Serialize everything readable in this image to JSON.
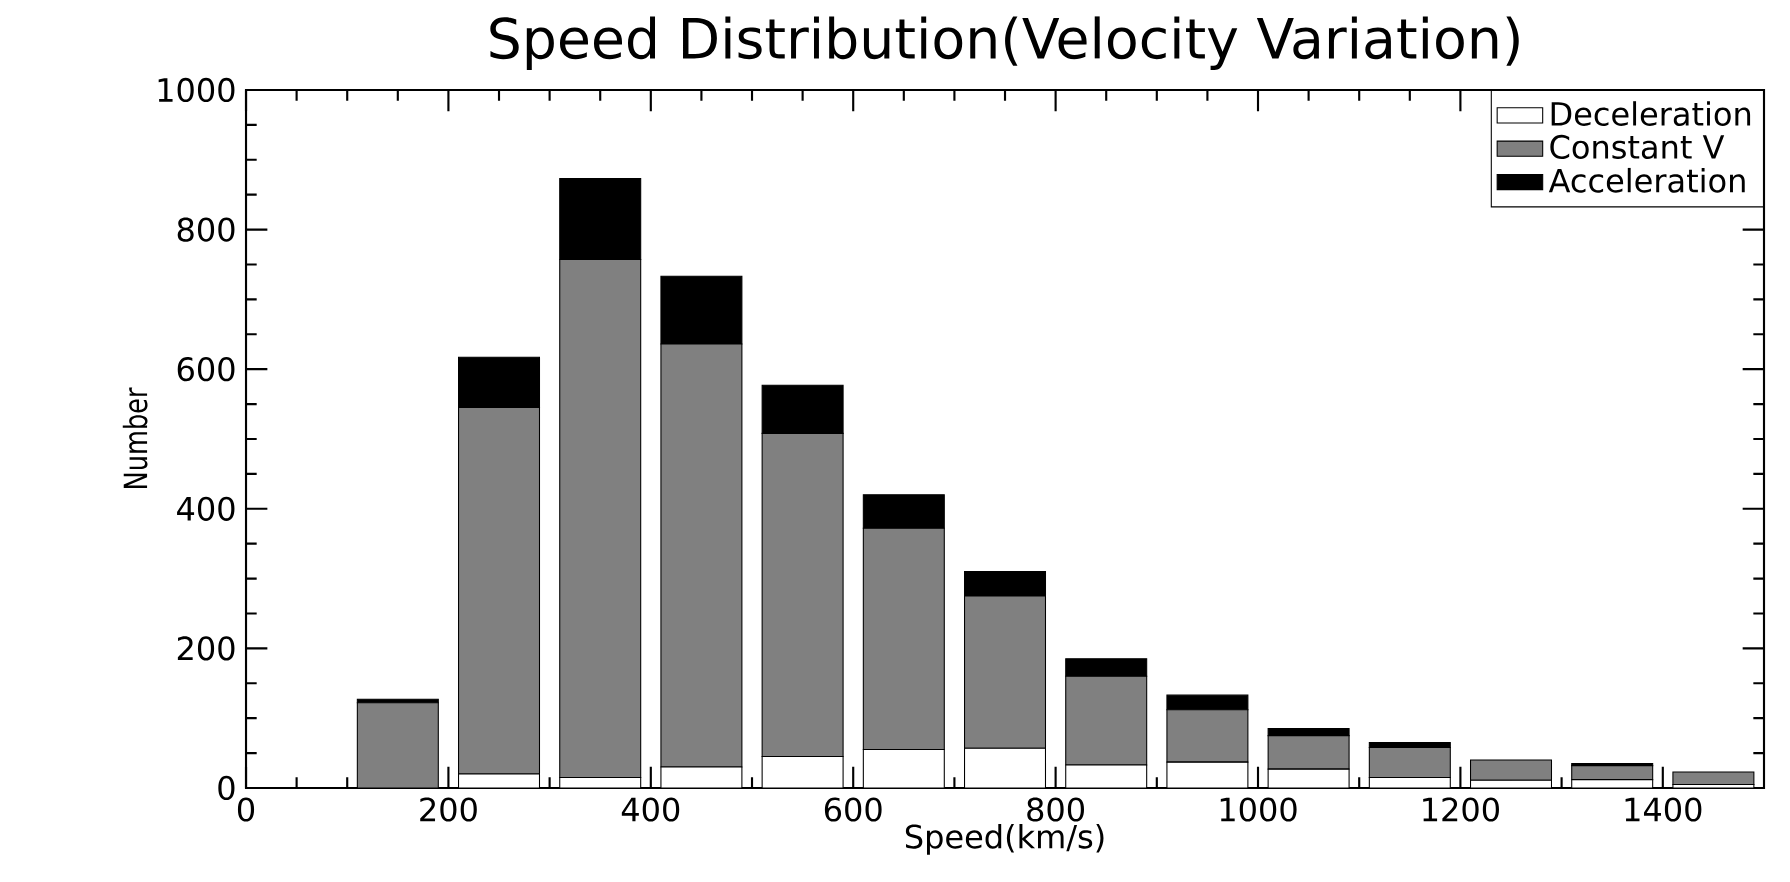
{
  "chart_data": {
    "type": "bar",
    "title": "Speed Distribution(Velocity Variation)",
    "xlabel": "Speed(km/s)",
    "ylabel": "Number",
    "x": [
      150,
      250,
      350,
      450,
      550,
      650,
      750,
      850,
      950,
      1050,
      1150,
      1250,
      1350,
      1450
    ],
    "stacked": true,
    "series": [
      {
        "name": "Deceleration",
        "color": "#ffffff",
        "values": [
          0,
          20,
          15,
          30,
          45,
          55,
          57,
          33,
          37,
          27,
          15,
          11,
          12,
          5
        ]
      },
      {
        "name": "Constant V",
        "color": "#808080",
        "values": [
          122,
          525,
          742,
          606,
          463,
          317,
          218,
          127,
          75,
          48,
          43,
          29,
          20,
          18
        ]
      },
      {
        "name": "Acceleration",
        "color": "#000000",
        "values": [
          5,
          72,
          116,
          97,
          69,
          48,
          35,
          25,
          21,
          10,
          7,
          0,
          3,
          0
        ]
      }
    ],
    "xlim": [
      0,
      1500
    ],
    "ylim": [
      0,
      1000
    ],
    "xticks": [
      0,
      200,
      400,
      600,
      800,
      1000,
      1200,
      1400
    ],
    "yticks": [
      0,
      200,
      400,
      600,
      800,
      1000
    ],
    "grid": false,
    "legend": "top right"
  }
}
